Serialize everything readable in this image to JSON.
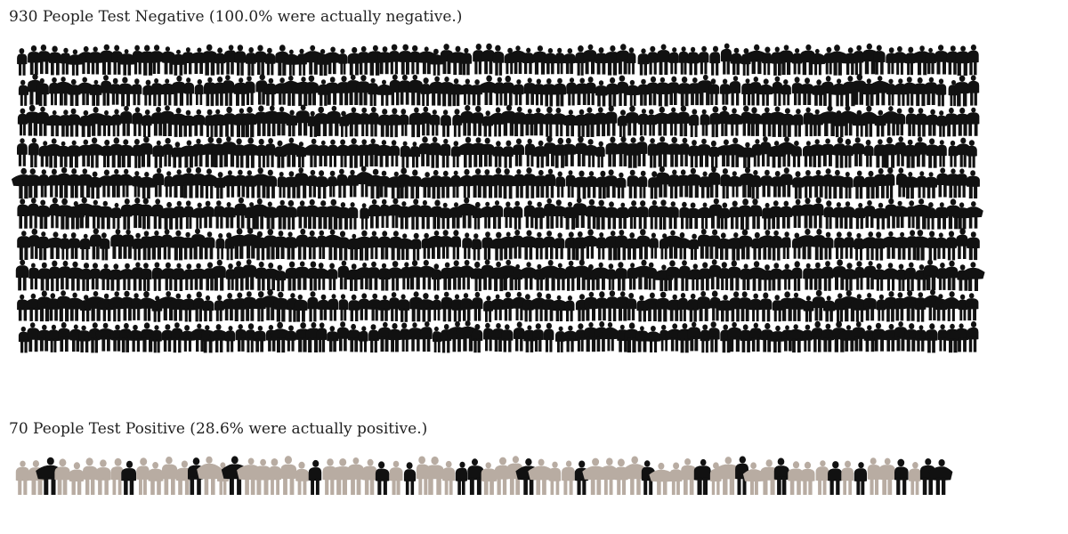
{
  "negative_group": {
    "heading": "930 People Test Negative (100.0% were actually negative.)",
    "count": 930,
    "actually_negative_share": 1.0
  },
  "positive_group": {
    "heading": "70 People Test Positive (28.6% were actually positive.)",
    "count": 70,
    "actually_positive_share": 0.286,
    "actually_positive_count": 20,
    "falsely_positive_count": 50
  },
  "colors": {
    "person_actual_positive": "#111111",
    "person_false_positive": "#b8aca2",
    "person_negative": "#111111",
    "heading_text": "#222222",
    "background": "#ffffff"
  },
  "icons": {
    "person": "person-silhouette-icon"
  }
}
